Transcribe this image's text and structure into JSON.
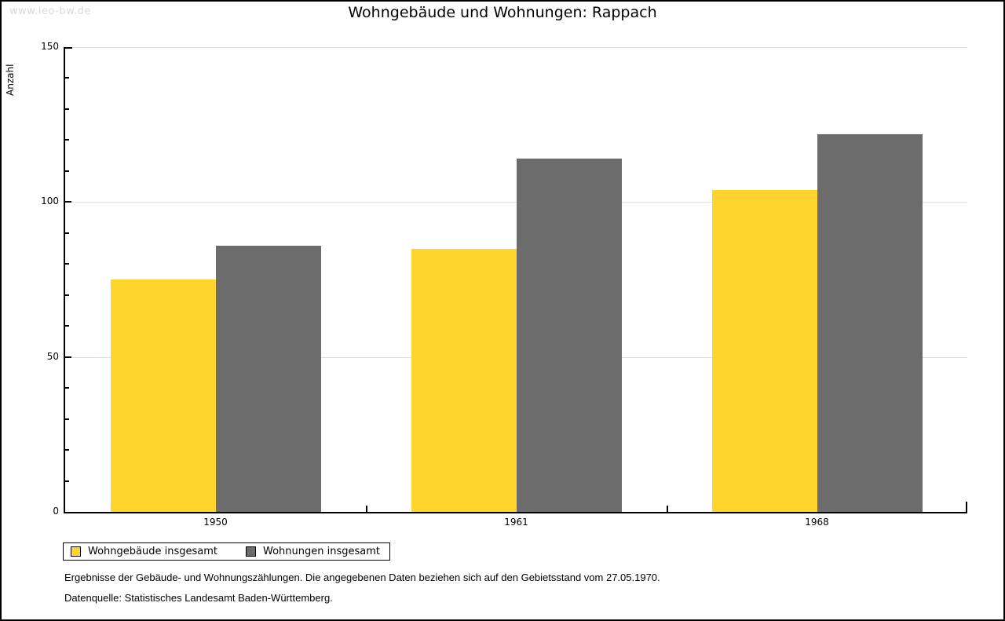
{
  "watermark": "www.leo-bw.de",
  "footer": {
    "line1": "Ergebnisse der Gebäude- und Wohnungszählungen. Die angegebenen Daten beziehen sich auf den Gebietsstand vom 27.05.1970.",
    "line2": "Datenquelle: Statistisches Landesamt Baden-Württemberg."
  },
  "chart_data": {
    "type": "bar",
    "title": "Wohngebäude und Wohnungen: Rappach",
    "categories": [
      "1950",
      "1961",
      "1968"
    ],
    "series": [
      {
        "name": "Wohngebäude insgesamt",
        "color": "#FDD52D",
        "values": [
          75,
          85,
          104
        ]
      },
      {
        "name": "Wohnungen insgesamt",
        "color": "#6C6C6C",
        "values": [
          86,
          114,
          122
        ]
      }
    ],
    "xlabel": "",
    "ylabel": "Anzahl",
    "ylim": [
      0,
      150
    ],
    "yticks": [
      0,
      50,
      100,
      150
    ],
    "minor_tick_interval": 10,
    "grid": true,
    "gridline_color": "#dfdfdf",
    "legend_position": "bottom-left"
  }
}
